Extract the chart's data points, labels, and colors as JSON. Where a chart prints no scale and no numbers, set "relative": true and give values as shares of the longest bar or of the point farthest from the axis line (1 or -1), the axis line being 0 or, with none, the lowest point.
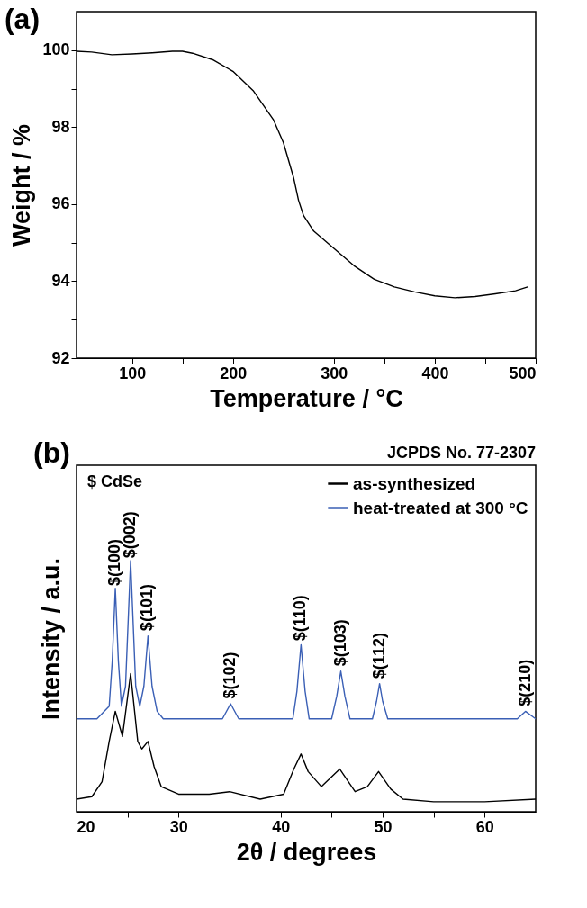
{
  "chart_data": [
    {
      "type": "line",
      "title": "(a)",
      "xlabel": "Temperature / °C",
      "ylabel": "Weight / %",
      "xlim": [
        45,
        500
      ],
      "ylim": [
        92,
        101
      ],
      "xticks": [
        100,
        200,
        300,
        400,
        500,
        {
          "value": 150,
          "label": null
        },
        {
          "value": 250,
          "label": null
        },
        {
          "value": 350,
          "label": null
        },
        {
          "value": 450,
          "label": null
        }
      ],
      "yticks": [
        92,
        94,
        96,
        98,
        100,
        {
          "value": 93,
          "label": null
        },
        {
          "value": 95,
          "label": null
        },
        {
          "value": 97,
          "label": null
        },
        {
          "value": 99,
          "label": null
        }
      ],
      "grid": false,
      "legend": false,
      "series": [
        {
          "color": "#000000",
          "x": [
            45,
            60,
            80,
            100,
            120,
            140,
            150,
            160,
            180,
            200,
            220,
            240,
            250,
            260,
            265,
            270,
            280,
            300,
            320,
            340,
            360,
            380,
            400,
            420,
            440,
            460,
            480,
            492
          ],
          "values": [
            99.97,
            99.95,
            99.88,
            99.9,
            99.93,
            99.97,
            99.97,
            99.92,
            99.75,
            99.45,
            98.95,
            98.2,
            97.6,
            96.7,
            96.1,
            95.7,
            95.3,
            94.85,
            94.4,
            94.05,
            93.85,
            93.72,
            93.62,
            93.57,
            93.6,
            93.67,
            93.75,
            93.85
          ]
        }
      ]
    },
    {
      "type": "line",
      "title": "(b)",
      "xlabel": "2θ / degrees",
      "ylabel": "Intensity / a.u.",
      "relative": true,
      "xlim": [
        20,
        65
      ],
      "xticks": [
        20,
        30,
        40,
        50,
        60,
        {
          "value": 25,
          "label": null
        },
        {
          "value": 35,
          "label": null
        },
        {
          "value": 45,
          "label": null
        },
        {
          "value": 55,
          "label": null
        }
      ],
      "grid": false,
      "legend": "top right",
      "series": [
        {
          "name": "as-synthesized",
          "color": "#000000",
          "x": [
            20,
            21.5,
            22.5,
            23.2,
            23.8,
            24.5,
            25.3,
            26.0,
            26.4,
            27.0,
            27.6,
            28.3,
            30,
            33,
            35,
            38,
            40.3,
            41.3,
            42.0,
            42.7,
            44,
            45.8,
            47.3,
            48.5,
            49.6,
            50.8,
            52,
            55,
            60,
            65
          ],
          "values": [
            0.05,
            0.06,
            0.12,
            0.28,
            0.4,
            0.3,
            0.55,
            0.28,
            0.25,
            0.28,
            0.18,
            0.1,
            0.07,
            0.07,
            0.08,
            0.05,
            0.07,
            0.17,
            0.23,
            0.16,
            0.1,
            0.17,
            0.08,
            0.1,
            0.16,
            0.09,
            0.05,
            0.04,
            0.04,
            0.05
          ]
        },
        {
          "name": "heat-treated at 300 °C",
          "color": "#3a5fb5",
          "x": [
            20,
            22,
            23.2,
            23.5,
            23.8,
            24.1,
            24.4,
            24.8,
            25.1,
            25.3,
            25.5,
            25.8,
            26.2,
            26.6,
            27.0,
            27.4,
            27.9,
            28.5,
            34.3,
            35.1,
            35.9,
            41.2,
            41.6,
            42.0,
            42.4,
            42.8,
            45.0,
            45.5,
            45.9,
            46.3,
            46.8,
            49.0,
            49.4,
            49.7,
            50.0,
            50.5,
            63.2,
            64,
            65
          ],
          "values": [
            0.37,
            0.37,
            0.42,
            0.6,
            0.89,
            0.6,
            0.42,
            0.5,
            0.8,
            1.0,
            0.8,
            0.5,
            0.42,
            0.5,
            0.7,
            0.5,
            0.4,
            0.37,
            0.37,
            0.43,
            0.37,
            0.37,
            0.48,
            0.665,
            0.48,
            0.37,
            0.37,
            0.46,
            0.56,
            0.46,
            0.37,
            0.37,
            0.44,
            0.51,
            0.44,
            0.37,
            0.37,
            0.4,
            0.37
          ]
        }
      ],
      "annotations": [
        "$ CdSe",
        "JCPDS No. 77-2307",
        {
          "text": "$(100)",
          "x": 23.8,
          "y": 0.9
        },
        {
          "text": "$(002)",
          "x": 25.3,
          "y": 1.01
        },
        {
          "text": "$(101)",
          "x": 27.0,
          "y": 0.72
        },
        {
          "text": "$(102)",
          "x": 35.1,
          "y": 0.45
        },
        {
          "text": "$(110)",
          "x": 42.0,
          "y": 0.68
        },
        {
          "text": "$(103)",
          "x": 45.9,
          "y": 0.58
        },
        {
          "text": "$(112)",
          "x": 49.7,
          "y": 0.53
        },
        {
          "text": "$(210)",
          "x": 64.0,
          "y": 0.42
        }
      ]
    }
  ]
}
